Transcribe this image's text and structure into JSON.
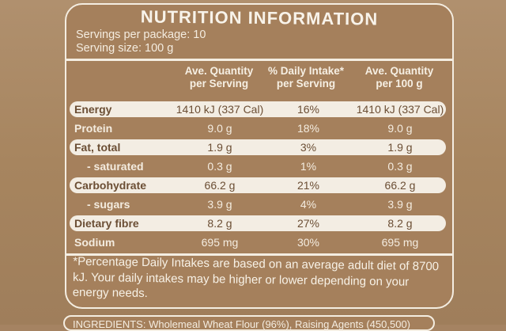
{
  "label": {
    "title": "NUTRITION INFORMATION",
    "servings_per_package": "Servings per package: 10",
    "serving_size": "Serving size: 100 g",
    "columns": [
      {
        "line1": "Ave. Quantity",
        "line2": "per Serving"
      },
      {
        "line1": "% Daily Intake*",
        "line2": "per Serving"
      },
      {
        "line1": "Ave. Quantity",
        "line2": "per 100 g"
      }
    ],
    "rows": [
      {
        "label": "Energy",
        "per_serving": "1410 kJ (337 Cal)",
        "daily_intake": "16%",
        "per_100g": "1410 kJ (337 Cal)",
        "highlight": true,
        "indent": false
      },
      {
        "label": "Protein",
        "per_serving": "9.0 g",
        "daily_intake": "18%",
        "per_100g": "9.0 g",
        "highlight": false,
        "indent": false
      },
      {
        "label": "Fat, total",
        "per_serving": "1.9 g",
        "daily_intake": "3%",
        "per_100g": "1.9 g",
        "highlight": true,
        "indent": false
      },
      {
        "label": "- saturated",
        "per_serving": "0.3 g",
        "daily_intake": "1%",
        "per_100g": "0.3 g",
        "highlight": false,
        "indent": true
      },
      {
        "label": "Carbohydrate",
        "per_serving": "66.2 g",
        "daily_intake": "21%",
        "per_100g": "66.2 g",
        "highlight": true,
        "indent": false
      },
      {
        "label": "- sugars",
        "per_serving": "3.9 g",
        "daily_intake": "4%",
        "per_100g": "3.9 g",
        "highlight": false,
        "indent": true
      },
      {
        "label": "Dietary fibre",
        "per_serving": "8.2 g",
        "daily_intake": "27%",
        "per_100g": "8.2 g",
        "highlight": true,
        "indent": false
      },
      {
        "label": "Sodium",
        "per_serving": "695 mg",
        "daily_intake": "30%",
        "per_100g": "695 mg",
        "highlight": false,
        "indent": false
      }
    ],
    "footnote": "*Percentage Daily Intakes are based on an average adult diet of 8700 kJ. Your daily intakes may be higher or lower depending on your energy needs.",
    "ingredients_partial": "INGREDIENTS: Wholemeal Wheat Flour (96%), Raising Agents (450,500)"
  },
  "colors": {
    "packaging": "#a5805c",
    "label_text": "#f4ece0",
    "highlight_band": "#f3ede3"
  }
}
